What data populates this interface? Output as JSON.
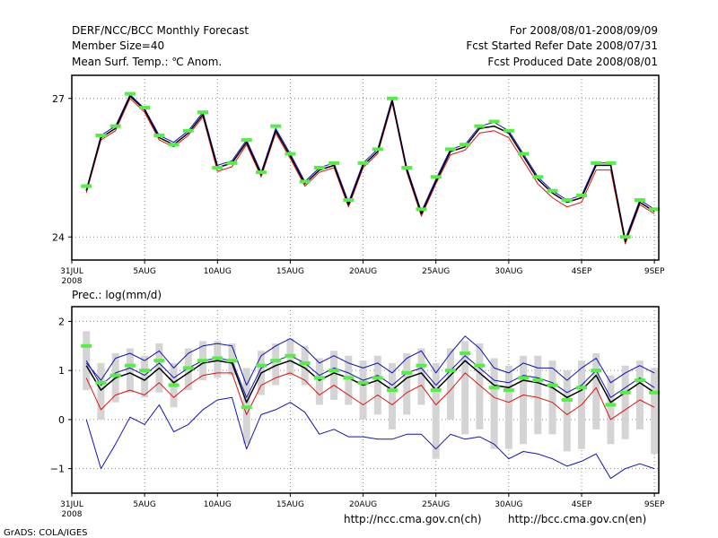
{
  "header": {
    "title": "DERF/NCC/BCC Monthly Forecast",
    "member_size": "Member Size=40",
    "variable": "Mean Surf. Temp.: ℃ Anom.",
    "period": "For 2008/08/01-2008/09/09",
    "refer_date": "Fcst Started Refer Date 2008/07/31",
    "produced_date": "Fcst Produced Date 2008/08/01"
  },
  "precip_label": "Prec.: log(mm/d)",
  "footer": {
    "grads": "GrADS: COLA/IGES",
    "url_ncc": "http://ncc.cma.gov.cn(ch)",
    "url_bcc": "http://bcc.cma.gov.cn(en)"
  },
  "colors": {
    "obs_marker": "#55ee44",
    "ensemble_mean": "#000000",
    "member_red": "#dd1111",
    "member_blue": "#1111bb",
    "spread_bar": "#d4d4d4",
    "grid": "#888888"
  },
  "x_ticks": [
    {
      "day": 0,
      "label": "31JUL",
      "sub": "2008"
    },
    {
      "day": 5,
      "label": "5AUG"
    },
    {
      "day": 10,
      "label": "10AUG"
    },
    {
      "day": 15,
      "label": "15AUG"
    },
    {
      "day": 20,
      "label": "20AUG"
    },
    {
      "day": 25,
      "label": "25AUG"
    },
    {
      "day": 30,
      "label": "30AUG"
    },
    {
      "day": 35,
      "label": "4SEP"
    },
    {
      "day": 40,
      "label": "9SEP"
    }
  ],
  "chart_data": [
    {
      "type": "line",
      "title": "Mean Surf. Temp.: ℃ Anom.",
      "x": [
        1,
        2,
        3,
        4,
        5,
        6,
        7,
        8,
        9,
        10,
        11,
        12,
        13,
        14,
        15,
        16,
        17,
        18,
        19,
        20,
        21,
        22,
        23,
        24,
        25,
        26,
        27,
        28,
        29,
        30,
        31,
        32,
        33,
        34,
        35,
        36,
        37,
        38,
        39,
        40
      ],
      "xlim": [
        0,
        40.3
      ],
      "ylim": [
        23.5,
        27.5
      ],
      "yticks": [
        24,
        27
      ],
      "series": [
        {
          "name": "observed",
          "values": [
            25.1,
            26.2,
            26.4,
            27.1,
            26.8,
            26.2,
            26.0,
            26.3,
            26.7,
            25.5,
            25.6,
            26.1,
            25.4,
            26.4,
            25.8,
            25.2,
            25.5,
            25.6,
            24.8,
            25.6,
            25.9,
            27.0,
            25.5,
            24.6,
            25.3,
            25.9,
            26.0,
            26.4,
            26.5,
            26.3,
            25.8,
            25.3,
            25.0,
            24.8,
            24.9,
            25.6,
            25.6,
            24.0,
            24.8,
            24.6
          ]
        },
        {
          "name": "ensemble mean",
          "values": [
            25.0,
            26.15,
            26.35,
            27.05,
            26.75,
            26.15,
            26.0,
            26.25,
            26.65,
            25.5,
            25.6,
            26.05,
            25.35,
            26.3,
            25.75,
            25.15,
            25.45,
            25.55,
            24.7,
            25.55,
            25.85,
            26.95,
            25.45,
            24.5,
            25.2,
            25.85,
            25.95,
            26.35,
            26.4,
            26.25,
            25.75,
            25.25,
            24.95,
            24.75,
            24.85,
            25.55,
            25.55,
            23.9,
            24.75,
            24.55
          ]
        },
        {
          "name": "member upper",
          "values": [
            25.02,
            26.2,
            26.4,
            27.08,
            26.78,
            26.2,
            26.05,
            26.3,
            26.7,
            25.55,
            25.65,
            26.1,
            25.4,
            26.35,
            25.8,
            25.2,
            25.5,
            25.6,
            24.75,
            25.6,
            25.9,
            27.0,
            25.5,
            24.55,
            25.25,
            25.9,
            26.0,
            26.4,
            26.48,
            26.3,
            25.8,
            25.3,
            25.0,
            24.8,
            24.9,
            25.6,
            25.6,
            23.95,
            24.8,
            24.6
          ]
        },
        {
          "name": "member lower",
          "values": [
            24.95,
            26.1,
            26.3,
            27.0,
            26.7,
            26.1,
            25.95,
            26.2,
            26.6,
            25.42,
            25.52,
            26.0,
            25.3,
            26.25,
            25.7,
            25.1,
            25.4,
            25.5,
            24.65,
            25.5,
            25.8,
            26.9,
            25.4,
            24.45,
            25.15,
            25.78,
            25.88,
            26.25,
            26.3,
            26.15,
            25.65,
            25.15,
            24.85,
            24.65,
            24.75,
            25.45,
            25.45,
            23.85,
            24.7,
            24.5
          ]
        }
      ]
    },
    {
      "type": "line",
      "title": "Prec.: log(mm/d)",
      "x": [
        1,
        2,
        3,
        4,
        5,
        6,
        7,
        8,
        9,
        10,
        11,
        12,
        13,
        14,
        15,
        16,
        17,
        18,
        19,
        20,
        21,
        22,
        23,
        24,
        25,
        26,
        27,
        28,
        29,
        30,
        31,
        32,
        33,
        34,
        35,
        36,
        37,
        38,
        39,
        40
      ],
      "xlim": [
        0,
        40.3
      ],
      "ylim": [
        -1.5,
        2.3
      ],
      "yticks": [
        -1,
        0,
        1,
        2
      ],
      "series": [
        {
          "name": "observed",
          "values": [
            1.5,
            0.75,
            0.9,
            1.1,
            1.0,
            1.2,
            0.7,
            1.05,
            1.2,
            1.25,
            1.2,
            0.25,
            1.1,
            1.2,
            1.3,
            1.15,
            0.85,
            1.0,
            0.85,
            0.75,
            0.85,
            0.6,
            0.95,
            1.1,
            0.6,
            1.0,
            1.35,
            1.1,
            0.65,
            0.6,
            0.85,
            0.8,
            0.7,
            0.4,
            0.65,
            1.0,
            0.3,
            0.55,
            0.8,
            0.55
          ]
        },
        {
          "name": "ensemble mean",
          "values": [
            1.1,
            0.6,
            0.85,
            0.95,
            0.8,
            1.05,
            0.75,
            0.95,
            1.15,
            1.2,
            1.15,
            0.35,
            0.95,
            1.1,
            1.2,
            1.05,
            0.8,
            0.95,
            0.85,
            0.7,
            0.8,
            0.6,
            0.85,
            0.95,
            0.6,
            0.9,
            1.2,
            0.95,
            0.7,
            0.65,
            0.8,
            0.75,
            0.65,
            0.45,
            0.6,
            0.9,
            0.35,
            0.55,
            0.75,
            0.55
          ]
        },
        {
          "name": "ensemble upper",
          "values": [
            1.2,
            0.7,
            0.95,
            1.05,
            0.9,
            1.15,
            0.85,
            1.05,
            1.2,
            1.25,
            1.2,
            0.45,
            1.05,
            1.2,
            1.3,
            1.15,
            0.9,
            1.05,
            0.95,
            0.8,
            0.9,
            0.7,
            0.95,
            1.05,
            0.7,
            1.0,
            1.3,
            1.05,
            0.8,
            0.75,
            0.9,
            0.85,
            0.75,
            0.55,
            0.7,
            1.0,
            0.45,
            0.65,
            0.85,
            0.65
          ]
        },
        {
          "name": "member red",
          "values": [
            0.85,
            0.2,
            0.5,
            0.6,
            0.5,
            0.75,
            0.45,
            0.7,
            0.9,
            0.95,
            0.95,
            0.1,
            0.7,
            0.85,
            0.95,
            0.8,
            0.5,
            0.7,
            0.5,
            0.3,
            0.5,
            0.3,
            0.55,
            0.7,
            0.3,
            0.6,
            0.95,
            0.7,
            0.45,
            0.35,
            0.5,
            0.45,
            0.35,
            0.1,
            0.3,
            0.65,
            0.0,
            0.2,
            0.4,
            0.25
          ]
        },
        {
          "name": "member blue max",
          "values": [
            1.15,
            0.8,
            1.25,
            1.35,
            1.2,
            1.4,
            1.05,
            1.35,
            1.5,
            1.55,
            1.5,
            0.7,
            1.3,
            1.5,
            1.65,
            1.45,
            1.15,
            1.3,
            1.15,
            1.05,
            1.15,
            0.95,
            1.25,
            1.4,
            0.95,
            1.35,
            1.7,
            1.45,
            1.05,
            0.95,
            1.15,
            1.05,
            1.05,
            0.8,
            1.05,
            1.25,
            0.75,
            0.95,
            1.1,
            0.95
          ]
        },
        {
          "name": "member blue min",
          "values": [
            0.0,
            -1.0,
            -0.5,
            0.05,
            -0.1,
            0.3,
            -0.25,
            -0.1,
            0.2,
            0.4,
            0.45,
            -0.6,
            0.1,
            0.2,
            0.35,
            0.15,
            -0.3,
            -0.2,
            -0.35,
            -0.35,
            -0.4,
            -0.4,
            -0.3,
            -0.3,
            -0.6,
            -0.3,
            -0.4,
            -0.35,
            -0.5,
            -0.8,
            -0.65,
            -0.7,
            -0.8,
            -0.95,
            -0.85,
            -0.7,
            -1.2,
            -1.0,
            -0.9,
            -1.0
          ]
        },
        {
          "name": "spread bar top",
          "values": [
            1.8,
            1.15,
            1.35,
            1.45,
            1.3,
            1.55,
            1.15,
            1.45,
            1.6,
            1.6,
            1.55,
            1.05,
            1.4,
            1.55,
            1.65,
            1.5,
            1.25,
            1.4,
            1.3,
            1.2,
            1.3,
            1.15,
            1.35,
            1.45,
            1.15,
            1.45,
            1.6,
            1.55,
            1.25,
            1.1,
            1.3,
            1.3,
            1.2,
            1.0,
            1.2,
            1.35,
            0.9,
            1.1,
            1.2,
            1.05
          ]
        },
        {
          "name": "spread bar bottom",
          "values": [
            0.6,
            0.0,
            0.35,
            0.55,
            0.45,
            0.55,
            0.25,
            0.6,
            0.8,
            0.85,
            0.9,
            -0.5,
            0.5,
            0.7,
            0.9,
            0.7,
            0.3,
            0.4,
            0.3,
            0.0,
            0.1,
            -0.2,
            0.1,
            0.3,
            -0.8,
            0.0,
            -0.3,
            -0.2,
            -0.6,
            -0.6,
            -0.5,
            -0.3,
            -0.3,
            -0.65,
            -0.6,
            -0.2,
            -0.5,
            -0.4,
            -0.2,
            -0.7
          ]
        }
      ]
    }
  ]
}
